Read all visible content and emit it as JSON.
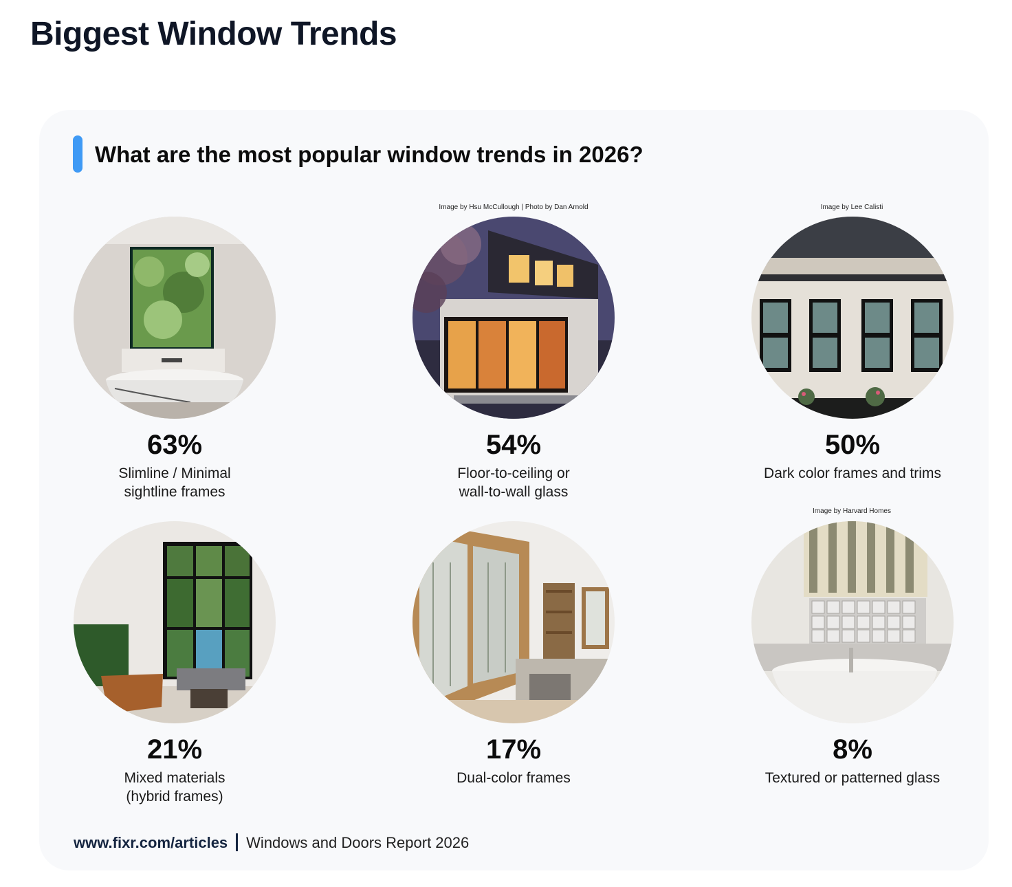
{
  "page": {
    "title": "Biggest Window Trends"
  },
  "card": {
    "title": "What are the most popular window trends in 2026?"
  },
  "colors": {
    "accent": "#3f9af5",
    "card_bg": "#f8f9fb",
    "title_color": "#0f1626"
  },
  "credits": {
    "floor_to_ceiling": "Image by Hsu McCullough | Photo by Dan Arnold",
    "dark_frames": "Image by Lee Calisti",
    "textured_glass": "Image by Harvard Homes"
  },
  "chart_data": {
    "type": "table",
    "title": "What are the most popular window trends in 2026?",
    "unit": "%",
    "categories": [
      "Slimline / Minimal sightline frames",
      "Floor-to-ceiling or wall-to-wall glass",
      "Dark color frames and trims",
      "Mixed materials (hybrid frames)",
      "Dual-color frames",
      "Textured or patterned glass"
    ],
    "values": [
      63,
      54,
      50,
      21,
      17,
      8
    ]
  },
  "items": [
    {
      "pct": "63%",
      "label": "Slimline / Minimal\n sightline frames"
    },
    {
      "pct": "54%",
      "label": "Floor-to-ceiling or\n wall-to-wall glass"
    },
    {
      "pct": "50%",
      "label": "Dark color frames and trims"
    },
    {
      "pct": "21%",
      "label": "Mixed materials\n(hybrid frames)"
    },
    {
      "pct": "17%",
      "label": "Dual-color frames"
    },
    {
      "pct": "8%",
      "label": "Textured or patterned glass"
    }
  ],
  "footer": {
    "url": "www.fixr.com/articles",
    "report": "Windows and Doors Report 2026"
  }
}
